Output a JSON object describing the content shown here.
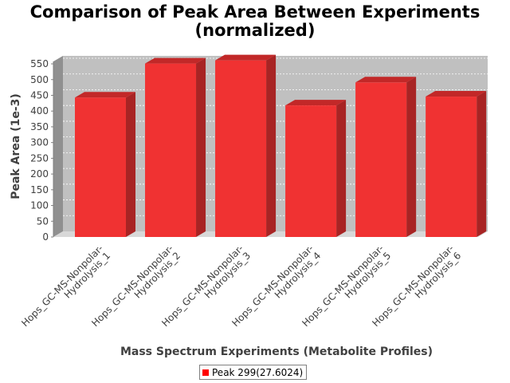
{
  "chart_data": {
    "type": "bar",
    "title_line1": "Comparison of Peak Area Between Experiments",
    "title_line2": "(normalized)",
    "xlabel": "Mass Spectrum Experiments (Metabolite Profiles)",
    "ylabel": "Peak Area (1e-3)",
    "categories": [
      [
        "Hops_GC-MS-Nonpolar-",
        "Hydrolysis_1"
      ],
      [
        "Hops_GC-MS-Nonpolar-",
        "Hydrolysis_2"
      ],
      [
        "Hops_GC-MS-Nonpolar-",
        "Hydrolysis_3"
      ],
      [
        "Hops_GC-MS-Nonpolar-",
        "Hydrolysis_4"
      ],
      [
        "Hops_GC-MS-Nonpolar-",
        "Hydrolysis_5"
      ],
      [
        "Hops_GC-MS-Nonpolar-",
        "Hydrolysis_6"
      ]
    ],
    "series": [
      {
        "name": "Peak 299(27.6024)",
        "values": [
          443,
          551,
          561,
          418,
          491,
          446
        ]
      }
    ],
    "ylim": [
      0,
      580
    ],
    "yticks": [
      0,
      50,
      100,
      150,
      200,
      250,
      300,
      350,
      400,
      450,
      500,
      550
    ],
    "grid": true,
    "legend_position": "bottom",
    "colors": {
      "bar": "#f03232",
      "bar_top": "#c22828",
      "bar_side": "#a82424",
      "plot_bg": "#c0c0c0",
      "plot_side": "#909090",
      "plot_floor": "#d8d8d8"
    }
  }
}
